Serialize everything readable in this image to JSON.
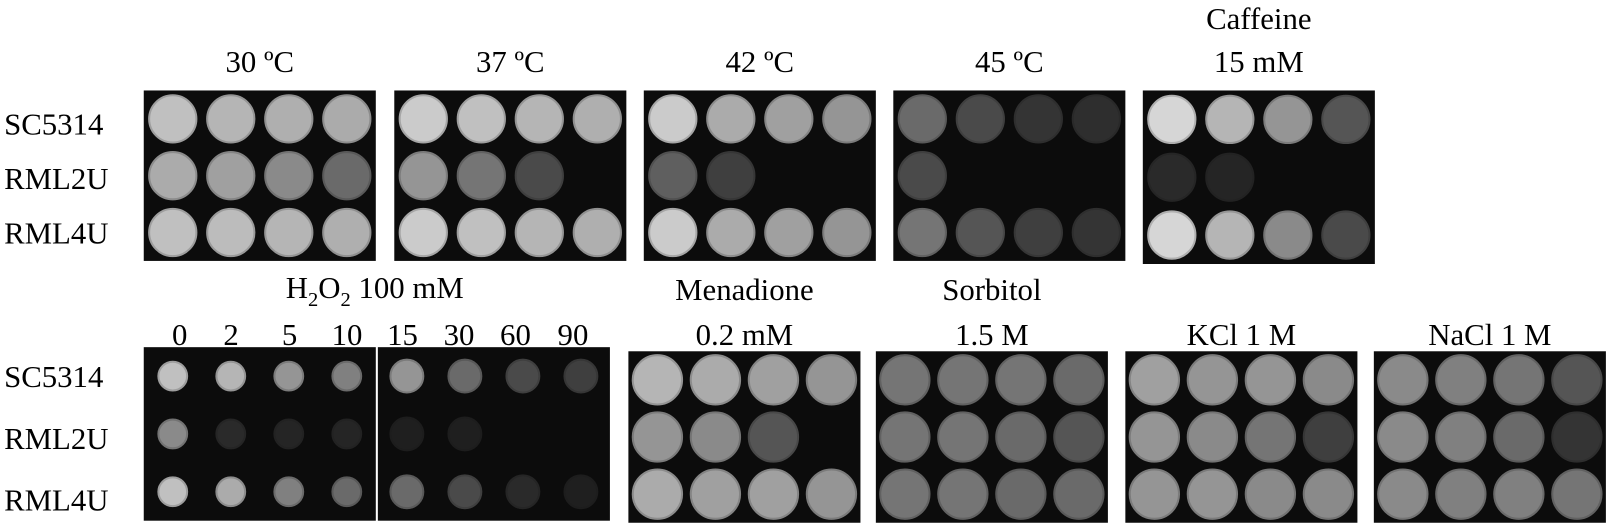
{
  "top_row": {
    "strains": [
      "SC5314",
      "RML2U",
      "RML4U"
    ],
    "panels": [
      {
        "title": [
          "30 ºC"
        ]
      },
      {
        "title": [
          "37 ºC"
        ]
      },
      {
        "title": [
          "42 ºC"
        ]
      },
      {
        "title": [
          "45 ºC"
        ]
      },
      {
        "title": [
          "Caffeine",
          "15 mM"
        ]
      }
    ]
  },
  "bottom_row": {
    "strains": [
      "SC5314",
      "RML2U",
      "RML4U"
    ],
    "h2o2": {
      "title": [
        "H",
        "2",
        "O",
        "2",
        " 100 mM"
      ],
      "times": [
        "0",
        "2",
        "5",
        "10",
        "15",
        "30",
        "60",
        "90"
      ]
    },
    "panels": [
      {
        "title": [
          "Menadione",
          "0.2 mM"
        ]
      },
      {
        "title": [
          "Sorbitol",
          "1.5 M"
        ]
      },
      {
        "title": [
          "KCl 1 M"
        ]
      },
      {
        "title": [
          "NaCl 1 M"
        ]
      }
    ]
  }
}
